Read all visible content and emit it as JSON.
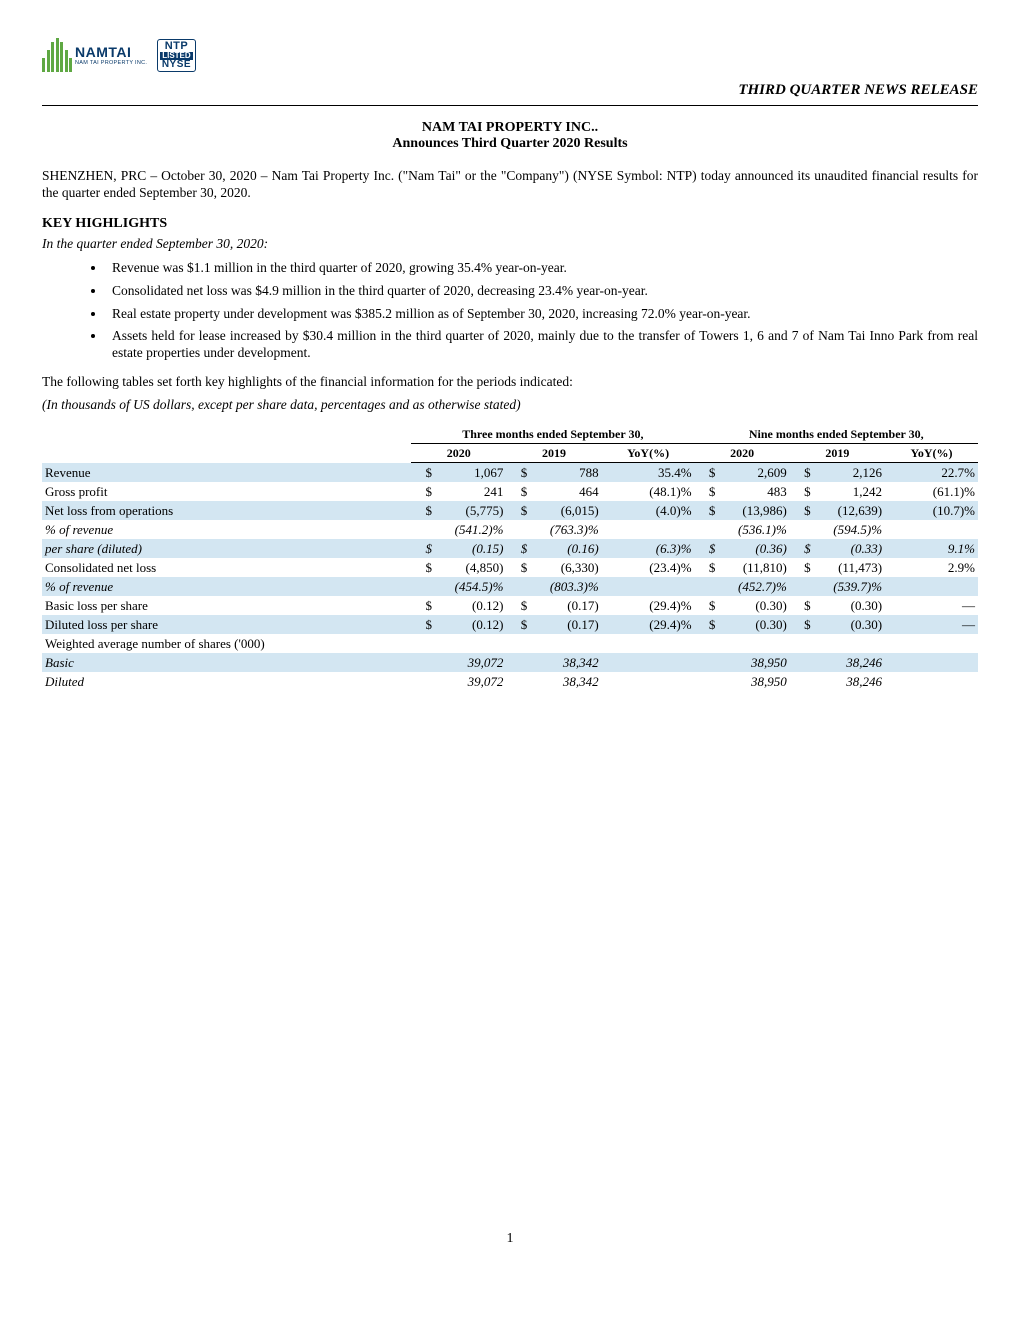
{
  "header": {
    "logo_name": "NAMTAI",
    "logo_sub": "NAM TAI PROPERTY INC.",
    "badge_top": "NTP",
    "badge_mid": "LISTED",
    "badge_bot": "NYSE",
    "release_tag": "THIRD QUARTER NEWS RELEASE",
    "bar_color": "#5fa843",
    "brand_color": "#0a3a6a"
  },
  "title": {
    "line1": "NAM TAI PROPERTY INC.",
    "line2": "Announces Third Quarter 2020 Results"
  },
  "intro": "SHENZHEN, PRC – October 30, 2020 – Nam Tai Property Inc. (\"Nam Tai\" or the \"Company\") (NYSE Symbol: NTP) today announced its unaudited financial results for the quarter ended September 30, 2020.",
  "highlights": {
    "heading": "KEY HIGHLIGHTS",
    "subheading": "In the quarter ended September 30, 2020:",
    "bullets": [
      "Revenue was $1.1 million in the third quarter of 2020, growing 35.4% year-on-year.",
      "Consolidated net loss was $4.9 million in the third quarter of 2020, decreasing 23.4% year-on-year.",
      "Real estate property under development was $385.2 million as of September 30, 2020, increasing 72.0% year-on-year.",
      "Assets held for lease increased by $30.4 million in the third quarter of 2020, mainly due to the transfer of Towers 1, 6 and 7 of Nam Tai Inno Park from real estate properties under development."
    ],
    "lead_out": "The following tables set forth key highlights of the financial information for the periods indicated:",
    "table_note": "(In thousands of US dollars, except per share data, percentages and as otherwise stated)"
  },
  "table": {
    "group_headers": {
      "three": "Three months ended September 30,",
      "nine": "Nine months ended September 30,"
    },
    "col_headers": {
      "y2020": "2020",
      "y2019": "2019",
      "yoy": "YoY(%)"
    },
    "shade_color": "#d3e6f2",
    "rows": [
      {
        "label": "Revenue",
        "indent": false,
        "italic": false,
        "shade": true,
        "q": {
          "c20": "$",
          "v20": "1,067",
          "c19": "$",
          "v19": "788",
          "yoy": "35.4%"
        },
        "n": {
          "c20": "$",
          "v20": "2,609",
          "c19": "$",
          "v19": "2,126",
          "yoy": "22.7%"
        }
      },
      {
        "label": "Gross profit",
        "indent": false,
        "italic": false,
        "shade": false,
        "q": {
          "c20": "$",
          "v20": "241",
          "c19": "$",
          "v19": "464",
          "yoy": "(48.1)%"
        },
        "n": {
          "c20": "$",
          "v20": "483",
          "c19": "$",
          "v19": "1,242",
          "yoy": "(61.1)%"
        }
      },
      {
        "label": "Net loss from operations",
        "indent": false,
        "italic": false,
        "shade": true,
        "q": {
          "c20": "$",
          "v20": "(5,775)",
          "c19": "$",
          "v19": "(6,015)",
          "yoy": "(4.0)%"
        },
        "n": {
          "c20": "$",
          "v20": "(13,986)",
          "c19": "$",
          "v19": "(12,639)",
          "yoy": "(10.7)%"
        }
      },
      {
        "label": "% of revenue",
        "indent": true,
        "italic": true,
        "shade": false,
        "q": {
          "c20": "",
          "v20": "(541.2)%",
          "c19": "",
          "v19": "(763.3)%",
          "yoy": ""
        },
        "n": {
          "c20": "",
          "v20": "(536.1)%",
          "c19": "",
          "v19": "(594.5)%",
          "yoy": ""
        }
      },
      {
        "label": "per share (diluted)",
        "indent": true,
        "italic": true,
        "shade": true,
        "q": {
          "c20": "$",
          "v20": "(0.15)",
          "c19": "$",
          "v19": "(0.16)",
          "yoy": "(6.3)%"
        },
        "n": {
          "c20": "$",
          "v20": "(0.36)",
          "c19": "$",
          "v19": "(0.33)",
          "yoy": "9.1%"
        }
      },
      {
        "label": "Consolidated net loss",
        "indent": false,
        "italic": false,
        "shade": false,
        "q": {
          "c20": "$",
          "v20": "(4,850)",
          "c19": "$",
          "v19": "(6,330)",
          "yoy": "(23.4)%"
        },
        "n": {
          "c20": "$",
          "v20": "(11,810)",
          "c19": "$",
          "v19": "(11,473)",
          "yoy": "2.9%"
        }
      },
      {
        "label": "% of revenue",
        "indent": true,
        "italic": true,
        "shade": true,
        "q": {
          "c20": "",
          "v20": "(454.5)%",
          "c19": "",
          "v19": "(803.3)%",
          "yoy": ""
        },
        "n": {
          "c20": "",
          "v20": "(452.7)%",
          "c19": "",
          "v19": "(539.7)%",
          "yoy": ""
        }
      },
      {
        "label": "Basic loss per share",
        "indent": false,
        "italic": false,
        "shade": false,
        "q": {
          "c20": "$",
          "v20": "(0.12)",
          "c19": "$",
          "v19": "(0.17)",
          "yoy": "(29.4)%"
        },
        "n": {
          "c20": "$",
          "v20": "(0.30)",
          "c19": "$",
          "v19": "(0.30)",
          "yoy": "—"
        }
      },
      {
        "label": "Diluted loss per share",
        "indent": false,
        "italic": false,
        "shade": true,
        "q": {
          "c20": "$",
          "v20": "(0.12)",
          "c19": "$",
          "v19": "(0.17)",
          "yoy": "(29.4)%"
        },
        "n": {
          "c20": "$",
          "v20": "(0.30)",
          "c19": "$",
          "v19": "(0.30)",
          "yoy": "—"
        }
      },
      {
        "label": "Weighted average number of shares ('000)",
        "indent": false,
        "italic": false,
        "shade": false,
        "q": {
          "c20": "",
          "v20": "",
          "c19": "",
          "v19": "",
          "yoy": ""
        },
        "n": {
          "c20": "",
          "v20": "",
          "c19": "",
          "v19": "",
          "yoy": ""
        }
      },
      {
        "label": "Basic",
        "indent": true,
        "italic": true,
        "shade": true,
        "q": {
          "c20": "",
          "v20": "39,072",
          "c19": "",
          "v19": "38,342",
          "yoy": ""
        },
        "n": {
          "c20": "",
          "v20": "38,950",
          "c19": "",
          "v19": "38,246",
          "yoy": ""
        }
      },
      {
        "label": "Diluted",
        "indent": true,
        "italic": true,
        "shade": false,
        "q": {
          "c20": "",
          "v20": "39,072",
          "c19": "",
          "v19": "38,342",
          "yoy": ""
        },
        "n": {
          "c20": "",
          "v20": "38,950",
          "c19": "",
          "v19": "38,246",
          "yoy": ""
        }
      }
    ]
  },
  "page_number": "1"
}
